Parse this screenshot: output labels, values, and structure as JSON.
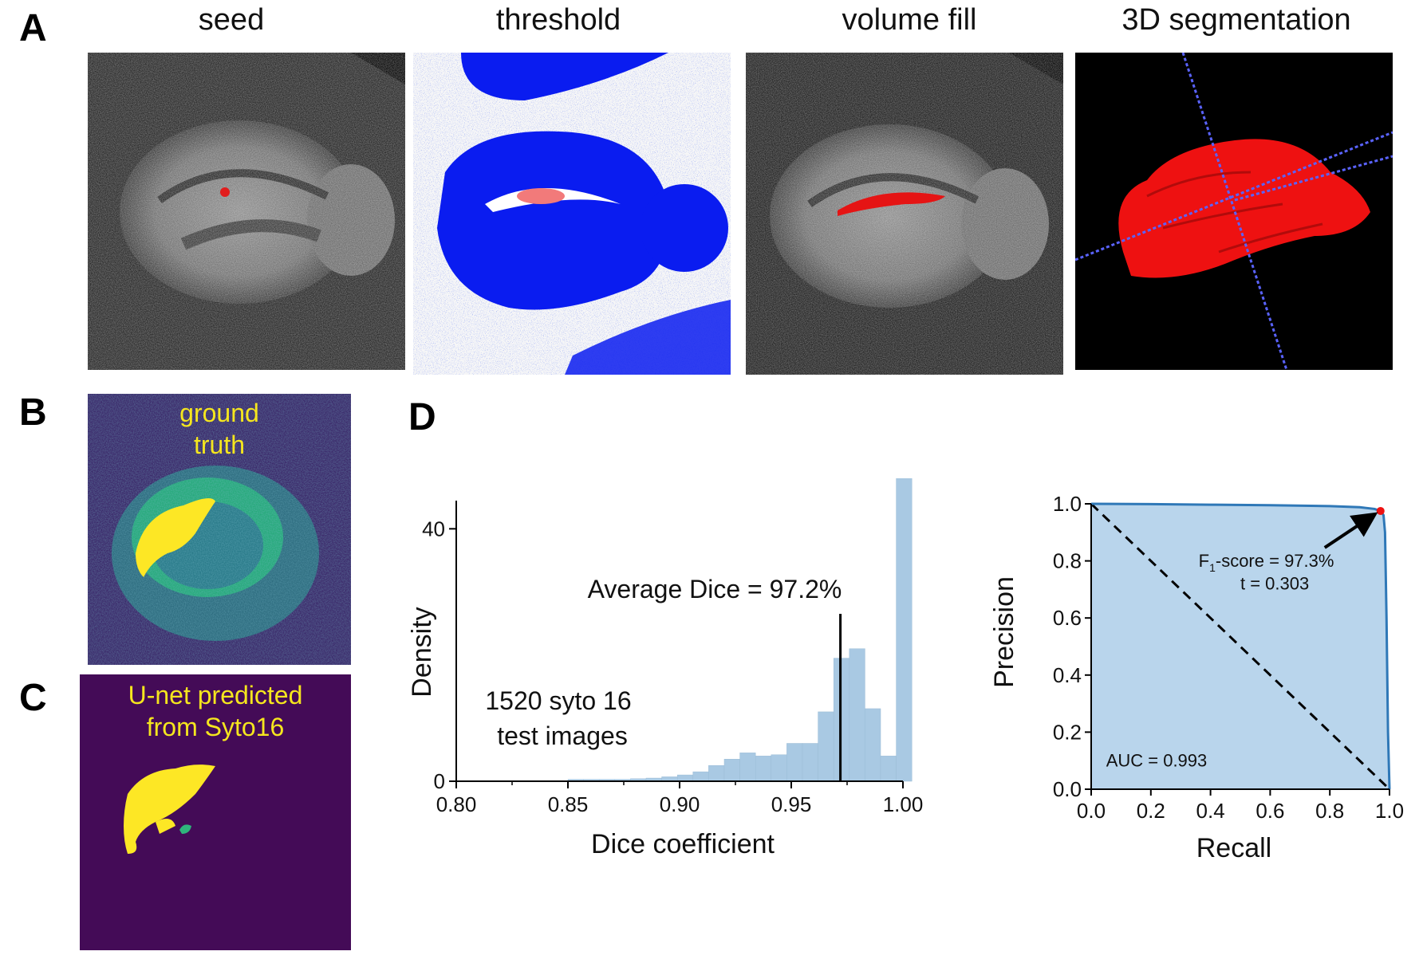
{
  "panels": {
    "a": {
      "letter": "A",
      "titles": [
        "seed",
        "threshold",
        "volume fill",
        "3D segmentation"
      ]
    },
    "b": {
      "letter": "B",
      "label_line1": "ground",
      "label_line2": "truth"
    },
    "c": {
      "letter": "C",
      "label_line1": "U-net predicted",
      "label_line2": "from Syto16"
    },
    "d": {
      "letter": "D"
    }
  },
  "colors": {
    "hist_bar": "#a9c9e3",
    "roc_fill": "#b9d5ec",
    "roc_line": "#2f78b7",
    "seg_red": "#ee1111",
    "threshold_blue": "#0a1cf0",
    "viridis_bg": "#3f0f5c",
    "viridis_yellow": "#fde725"
  },
  "chart_data": [
    {
      "type": "bar",
      "xlabel": "Dice coefficient",
      "ylabel": "Density",
      "xlim": [
        0.8,
        1.0
      ],
      "ylim": [
        0,
        48
      ],
      "x_ticks": [
        "0.80",
        "0.85",
        "0.90",
        "0.95",
        "1.00"
      ],
      "y_ticks": [
        "0",
        "40"
      ],
      "bin_edges": [
        0.85,
        0.857,
        0.864,
        0.871,
        0.878,
        0.885,
        0.892,
        0.899,
        0.906,
        0.913,
        0.92,
        0.927,
        0.934,
        0.941,
        0.948,
        0.955,
        0.962,
        0.969,
        0.976,
        0.983,
        0.99,
        0.997
      ],
      "values": [
        0.3,
        0.3,
        0.3,
        0.3,
        0.4,
        0.5,
        0.7,
        1.0,
        1.5,
        2.5,
        3.5,
        4.5,
        4.0,
        4.2,
        6.0,
        6.0,
        11.0,
        19.5,
        21.0,
        11.5,
        4.0,
        48.0
      ],
      "average_line": 0.972,
      "annotations": [
        "Average Dice = 97.2%",
        "1520 syto 16",
        "test images"
      ]
    },
    {
      "type": "line",
      "xlabel": "Recall",
      "ylabel": "Precision",
      "xlim": [
        0,
        1
      ],
      "ylim": [
        0,
        1
      ],
      "x_ticks": [
        "0.0",
        "0.2",
        "0.4",
        "0.6",
        "0.8",
        "1.0"
      ],
      "y_ticks": [
        "0.0",
        "0.2",
        "0.4",
        "0.6",
        "0.8",
        "1.0"
      ],
      "x": [
        0.0,
        0.2,
        0.4,
        0.6,
        0.8,
        0.9,
        0.95,
        0.97,
        0.98,
        0.985,
        0.99,
        0.995,
        1.0
      ],
      "y": [
        1.0,
        0.999,
        0.997,
        0.995,
        0.992,
        0.988,
        0.982,
        0.975,
        0.96,
        0.9,
        0.6,
        0.2,
        0.0
      ],
      "baseline": [
        [
          0,
          1
        ],
        [
          1,
          0
        ]
      ],
      "optimal_point": {
        "x": 0.97,
        "y": 0.975
      },
      "f1_label_prefix": "F",
      "f1_label_sub": "1",
      "f1_label_suffix": "-score = 97.3%",
      "t_label": "t = 0.303",
      "auc_label": "AUC = 0.993"
    }
  ]
}
